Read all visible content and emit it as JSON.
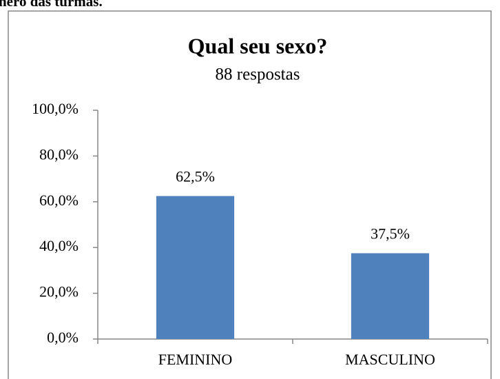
{
  "caption": "nero das turmas.",
  "chart_data": {
    "type": "bar",
    "title": "Qual seu sexo?",
    "subtitle": "88 respostas",
    "categories": [
      "FEMININO",
      "MASCULINO"
    ],
    "values": [
      62.5,
      37.5
    ],
    "value_labels": [
      "62,5%",
      "37,5%"
    ],
    "color": "#4f81bd",
    "ylim": [
      0,
      100
    ],
    "yticks": [
      {
        "value": 0,
        "label": "0,0%"
      },
      {
        "value": 20,
        "label": "20,0%"
      },
      {
        "value": 40,
        "label": "40,0%"
      },
      {
        "value": 60,
        "label": "60,0%"
      },
      {
        "value": 80,
        "label": "80,0%"
      },
      {
        "value": 100,
        "label": "100,0%"
      }
    ],
    "grid": false
  }
}
